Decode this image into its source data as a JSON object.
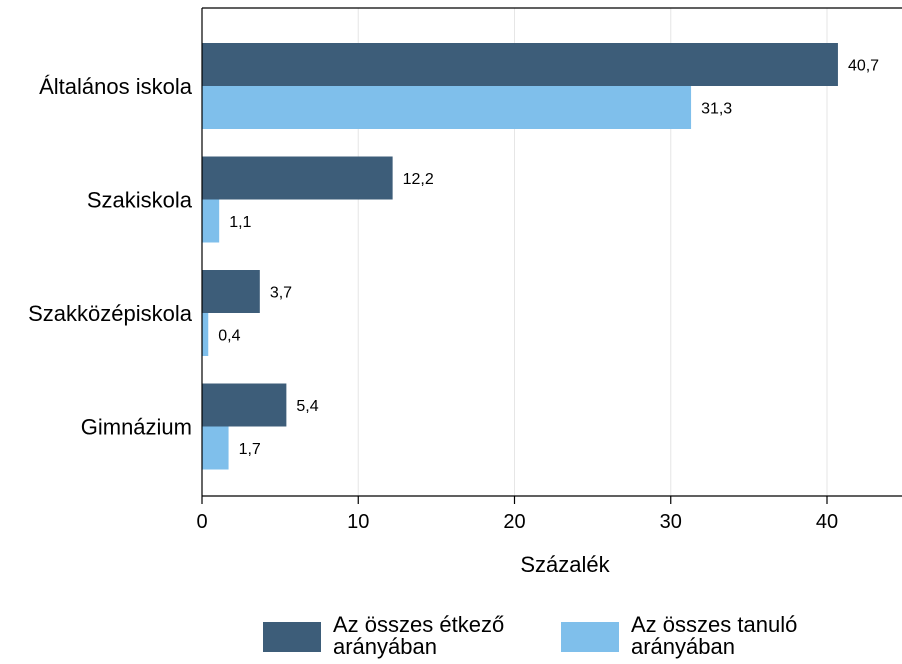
{
  "chart_data": {
    "type": "bar",
    "orientation": "horizontal",
    "categories": [
      "Általános iskola",
      "Szakiskola",
      "Szakközépiskola",
      "Gimnázium"
    ],
    "series": [
      {
        "name": "Az összes étkező arányában",
        "legend_lines": [
          "Az összes étkező",
          "arányában"
        ],
        "color": "#3d5d79",
        "values": [
          40.7,
          12.2,
          3.7,
          5.4
        ],
        "labels": [
          "40,7",
          "12,2",
          "3,7",
          "5,4"
        ]
      },
      {
        "name": "Az összes tanuló arányában",
        "legend_lines": [
          "Az összes tanuló",
          "arányában"
        ],
        "color": "#7fbfeb",
        "values": [
          31.3,
          1.1,
          0.4,
          1.7
        ],
        "labels": [
          "31,3",
          "1,1",
          "0,4",
          "1,7"
        ]
      }
    ],
    "xlabel": "Százalék",
    "xlim": [
      0,
      44.8
    ],
    "xticks": [
      0,
      10,
      20,
      30,
      40
    ],
    "xtick_labels": [
      "0",
      "10",
      "20",
      "30",
      "40"
    ],
    "grid": "vertical",
    "legend_position": "bottom"
  }
}
